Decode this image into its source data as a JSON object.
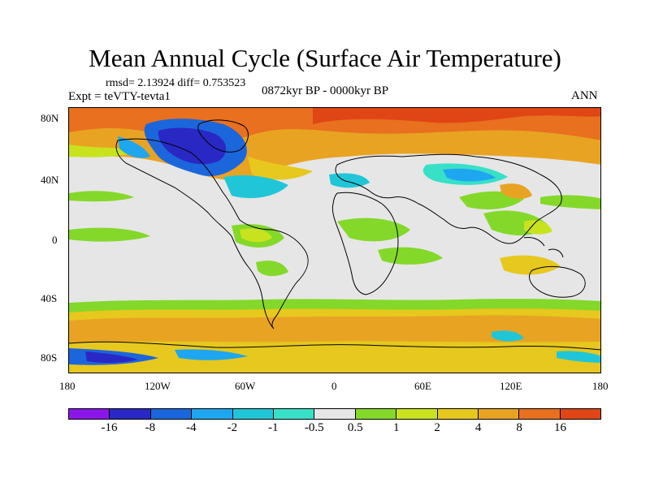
{
  "title": "Mean Annual Cycle (Surface Air Temperature)",
  "stats": "rmsd= 2.13924 diff= 0.753523",
  "experiment": "Expt = teVTY-tevta1",
  "period": "0872kyr BP - 0000kyr BP",
  "season": "ANN",
  "lat_ticks": [
    "80N",
    "40N",
    "0",
    "40S",
    "80S"
  ],
  "lon_ticks": [
    "180",
    "120W",
    "60W",
    "0",
    "60E",
    "120E",
    "180"
  ],
  "colorbar": {
    "colors": [
      "#8a17e8",
      "#2a28c4",
      "#1c66dc",
      "#1ea6f0",
      "#20c6d8",
      "#38e0c8",
      "#e6e6e6",
      "#84d82a",
      "#c8e31e",
      "#e6c81e",
      "#e9a323",
      "#e8701e",
      "#e04516"
    ],
    "labels": [
      "-16",
      "-8",
      "-4",
      "-2",
      "-1",
      "-0.5",
      "0.5",
      "1",
      "2",
      "4",
      "8",
      "16"
    ]
  }
}
